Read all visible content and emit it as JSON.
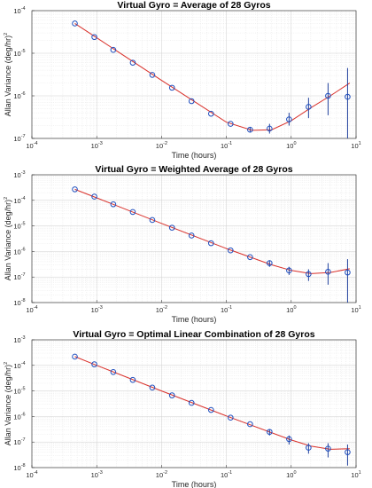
{
  "chart_data": [
    {
      "type": "scatter",
      "title": "Virtual Gyro = Average of 28 Gyros",
      "xlabel": "Time (hours)",
      "ylabel": "Allan Variance (deg/hr)",
      "ylabel_sup": "2",
      "xscale": "log",
      "yscale": "log",
      "xlim": [
        0.0001,
        10
      ],
      "ylim": [
        1e-07,
        0.0001
      ],
      "grid": true,
      "xticks": [
        {
          "base": "10",
          "exp": "-4"
        },
        {
          "base": "10",
          "exp": "-3"
        },
        {
          "base": "10",
          "exp": "-2"
        },
        {
          "base": "10",
          "exp": "-1"
        },
        {
          "base": "10",
          "exp": "0"
        },
        {
          "base": "10",
          "exp": "1"
        }
      ],
      "yticks": [
        {
          "base": "10",
          "exp": "-7"
        },
        {
          "base": "10",
          "exp": "-6"
        },
        {
          "base": "10",
          "exp": "-5"
        },
        {
          "base": "10",
          "exp": "-4"
        }
      ],
      "series": [
        {
          "x": [
            0.00046,
            0.00092,
            0.0018,
            0.0036,
            0.0072,
            0.0145,
            0.029,
            0.058,
            0.116,
            0.232,
            0.463,
            0.926,
            1.85,
            3.7,
            7.4
          ],
          "y": [
            5e-05,
            2.4e-05,
            1.2e-05,
            6e-06,
            3.1e-06,
            1.55e-06,
            7.5e-07,
            3.8e-07,
            2.2e-07,
            1.6e-07,
            1.7e-07,
            2.8e-07,
            5.5e-07,
            1e-06,
            9.5e-07
          ],
          "err_low": [
            null,
            null,
            null,
            null,
            null,
            null,
            null,
            null,
            null,
            1.4e-07,
            1.3e-07,
            2e-07,
            3e-07,
            3.5e-07,
            1e-07
          ],
          "err_high": [
            null,
            null,
            null,
            null,
            null,
            null,
            null,
            null,
            null,
            1.8e-07,
            2.2e-07,
            4e-07,
            9e-07,
            2e-06,
            4.5e-06
          ]
        },
        {
          "x": [
            0.00046,
            0.001,
            0.01,
            0.1,
            0.25,
            0.5,
            1,
            2,
            4,
            8
          ],
          "y": [
            5e-05,
            2.3e-05,
            2.3e-06,
            2.4e-07,
            1.55e-07,
            1.6e-07,
            2.6e-07,
            5.2e-07,
            1e-06,
            2e-06
          ]
        }
      ]
    },
    {
      "type": "scatter",
      "title": "Virtual Gyro = Weighted Average of 28 Gyros",
      "xlabel": "Time (hours)",
      "ylabel": "Allan Variance (deg/hr)",
      "ylabel_sup": "2",
      "xscale": "log",
      "yscale": "log",
      "xlim": [
        0.0001,
        10
      ],
      "ylim": [
        1e-08,
        0.001
      ],
      "grid": true,
      "xticks": [
        {
          "base": "10",
          "exp": "-4"
        },
        {
          "base": "10",
          "exp": "-3"
        },
        {
          "base": "10",
          "exp": "-2"
        },
        {
          "base": "10",
          "exp": "-1"
        },
        {
          "base": "10",
          "exp": "0"
        },
        {
          "base": "10",
          "exp": "1"
        }
      ],
      "yticks": [
        {
          "base": "10",
          "exp": "-8"
        },
        {
          "base": "10",
          "exp": "-7"
        },
        {
          "base": "10",
          "exp": "-6"
        },
        {
          "base": "10",
          "exp": "-5"
        },
        {
          "base": "10",
          "exp": "-4"
        },
        {
          "base": "10",
          "exp": "-3"
        }
      ],
      "series": [
        {
          "x": [
            0.00046,
            0.00092,
            0.0018,
            0.0036,
            0.0072,
            0.0145,
            0.029,
            0.058,
            0.116,
            0.232,
            0.463,
            0.926,
            1.85,
            3.7,
            7.4
          ],
          "y": [
            0.00027,
            0.00014,
            7e-05,
            3.5e-05,
            1.7e-05,
            8.5e-06,
            4.2e-06,
            2.1e-06,
            1.1e-06,
            6e-07,
            3.5e-07,
            1.8e-07,
            1.3e-07,
            1.6e-07,
            1.5e-07
          ],
          "err_low": [
            null,
            null,
            null,
            null,
            null,
            null,
            null,
            null,
            null,
            null,
            2.5e-07,
            1.2e-07,
            7e-08,
            5e-08,
            1e-08
          ],
          "err_high": [
            null,
            null,
            null,
            null,
            null,
            null,
            null,
            null,
            null,
            null,
            4.5e-07,
            2.5e-07,
            2e-07,
            3.5e-07,
            5e-07
          ]
        },
        {
          "x": [
            0.00046,
            0.001,
            0.01,
            0.1,
            0.5,
            1,
            2,
            4,
            8
          ],
          "y": [
            0.00027,
            0.000125,
            1.25e-05,
            1.3e-06,
            3e-07,
            1.8e-07,
            1.35e-07,
            1.5e-07,
            2.1e-07
          ]
        }
      ]
    },
    {
      "type": "scatter",
      "title": "Virtual Gyro = Optimal Linear Combination of 28 Gyros",
      "xlabel": "Time (hours)",
      "ylabel": "Allan Variance (deg/hr)",
      "ylabel_sup": "2",
      "xscale": "log",
      "yscale": "log",
      "xlim": [
        0.0001,
        10
      ],
      "ylim": [
        1e-08,
        0.001
      ],
      "grid": true,
      "xticks": [
        {
          "base": "10",
          "exp": "-4"
        },
        {
          "base": "10",
          "exp": "-3"
        },
        {
          "base": "10",
          "exp": "-2"
        },
        {
          "base": "10",
          "exp": "-1"
        },
        {
          "base": "10",
          "exp": "0"
        },
        {
          "base": "10",
          "exp": "1"
        }
      ],
      "yticks": [
        {
          "base": "10",
          "exp": "-8"
        },
        {
          "base": "10",
          "exp": "-7"
        },
        {
          "base": "10",
          "exp": "-6"
        },
        {
          "base": "10",
          "exp": "-5"
        },
        {
          "base": "10",
          "exp": "-4"
        },
        {
          "base": "10",
          "exp": "-3"
        }
      ],
      "series": [
        {
          "x": [
            0.00046,
            0.00092,
            0.0018,
            0.0036,
            0.0072,
            0.0145,
            0.029,
            0.058,
            0.116,
            0.232,
            0.463,
            0.926,
            1.85,
            3.7,
            7.4
          ],
          "y": [
            0.00022,
            0.00011,
            5.5e-05,
            2.7e-05,
            1.35e-05,
            6.7e-06,
            3.4e-06,
            1.8e-06,
            9e-07,
            5e-07,
            2.5e-07,
            1.3e-07,
            6e-08,
            5.5e-08,
            4e-08
          ],
          "err_low": [
            null,
            null,
            null,
            null,
            null,
            null,
            null,
            null,
            null,
            null,
            1.8e-07,
            8e-08,
            3.5e-08,
            2.5e-08,
            1.2e-08
          ],
          "err_high": [
            null,
            null,
            null,
            null,
            null,
            null,
            null,
            null,
            null,
            null,
            3.2e-07,
            1.8e-07,
            9e-08,
            9e-08,
            8e-08
          ]
        },
        {
          "x": [
            0.00046,
            0.001,
            0.01,
            0.1,
            1,
            2,
            4,
            8
          ],
          "y": [
            0.00022,
            0.0001,
            1e-05,
            1.05e-06,
            1.2e-07,
            7e-08,
            5.2e-08,
            5.5e-08
          ]
        }
      ]
    }
  ]
}
